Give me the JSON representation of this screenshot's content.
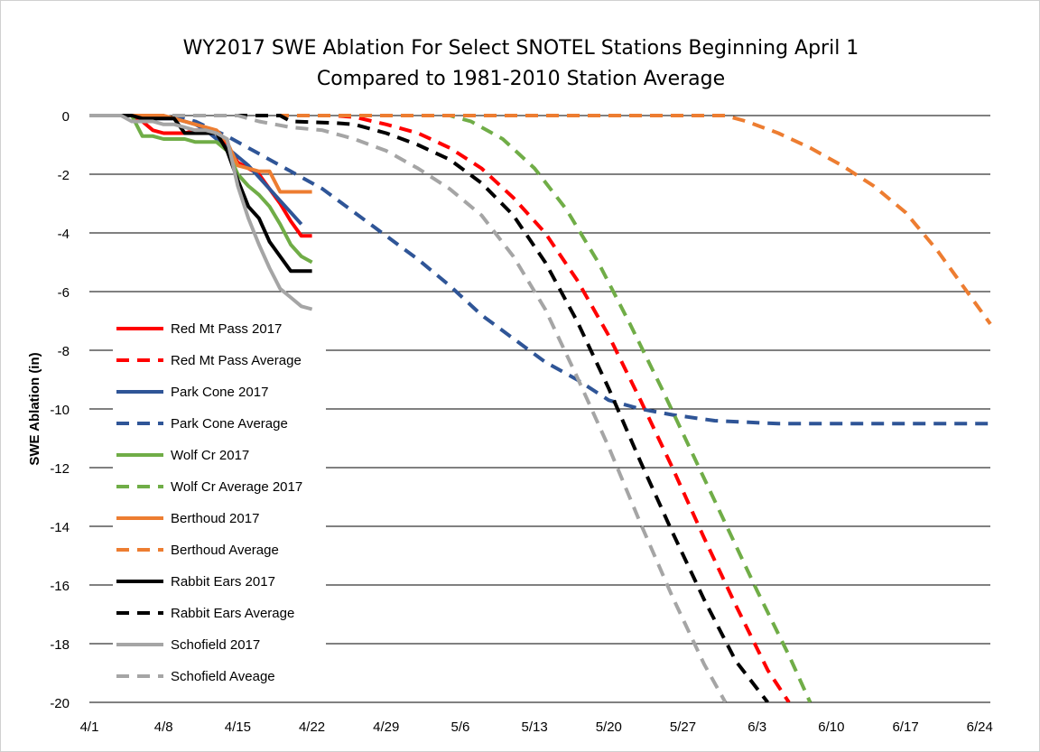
{
  "chart_data": {
    "type": "line",
    "title": "WY2017 SWE Ablation For Select SNOTEL Stations Beginning April 1",
    "subtitle": "Compared to 1981-2010 Station Average",
    "xlabel": "",
    "ylabel": "SWE Ablation (in)",
    "xlim": [
      "4/1",
      "6/25"
    ],
    "ylim": [
      -20,
      0
    ],
    "x_ticks": [
      "4/1",
      "4/8",
      "4/15",
      "4/22",
      "4/29",
      "5/6",
      "5/13",
      "5/20",
      "5/27",
      "6/3",
      "6/10",
      "6/17",
      "6/24"
    ],
    "y_ticks": [
      0,
      -2,
      -4,
      -6,
      -8,
      -10,
      -12,
      -14,
      -16,
      -18,
      -20
    ],
    "grid": "horizontal",
    "legend_position": "left-bottom inside",
    "series": [
      {
        "name": "Red Mt Pass 2017",
        "color": "#ff0000",
        "dash": false,
        "points": [
          [
            "4/1",
            0
          ],
          [
            "4/5",
            0
          ],
          [
            "4/6",
            -0.2
          ],
          [
            "4/7",
            -0.5
          ],
          [
            "4/8",
            -0.6
          ],
          [
            "4/9",
            -0.6
          ],
          [
            "4/10",
            -0.6
          ],
          [
            "4/11",
            -0.5
          ],
          [
            "4/12",
            -0.5
          ],
          [
            "4/13",
            -0.6
          ],
          [
            "4/14",
            -1.0
          ],
          [
            "4/15",
            -1.6
          ],
          [
            "4/16",
            -1.8
          ],
          [
            "4/17",
            -2.0
          ],
          [
            "4/18",
            -2.5
          ],
          [
            "4/19",
            -3.0
          ],
          [
            "4/20",
            -3.6
          ],
          [
            "4/21",
            -4.1
          ],
          [
            "4/22",
            -4.1
          ]
        ]
      },
      {
        "name": "Red Mt Pass Average",
        "color": "#ff0000",
        "dash": true,
        "points": [
          [
            "4/1",
            0
          ],
          [
            "4/24",
            0
          ],
          [
            "4/26",
            -0.05
          ],
          [
            "4/29",
            -0.3
          ],
          [
            "5/2",
            -0.6
          ],
          [
            "5/5",
            -1.1
          ],
          [
            "5/8",
            -1.8
          ],
          [
            "5/11",
            -2.8
          ],
          [
            "5/14",
            -4.0
          ],
          [
            "5/17",
            -5.6
          ],
          [
            "5/20",
            -7.5
          ],
          [
            "5/23",
            -9.7
          ],
          [
            "5/26",
            -12.0
          ],
          [
            "5/29",
            -14.4
          ],
          [
            "6/1",
            -16.7
          ],
          [
            "6/4",
            -18.9
          ],
          [
            "6/6",
            -20
          ]
        ]
      },
      {
        "name": "Park Cone 2017",
        "color": "#2f5597",
        "dash": false,
        "points": [
          [
            "4/1",
            0
          ],
          [
            "4/6",
            0
          ],
          [
            "4/7",
            -0.1
          ],
          [
            "4/8",
            -0.1
          ],
          [
            "4/9",
            -0.1
          ],
          [
            "4/10",
            -0.2
          ],
          [
            "4/11",
            -0.3
          ],
          [
            "4/12",
            -0.5
          ],
          [
            "4/13",
            -0.8
          ],
          [
            "4/14",
            -1.1
          ],
          [
            "4/15",
            -1.4
          ],
          [
            "4/16",
            -1.7
          ],
          [
            "4/17",
            -2.1
          ],
          [
            "4/18",
            -2.5
          ],
          [
            "4/19",
            -2.9
          ],
          [
            "4/20",
            -3.3
          ],
          [
            "4/21",
            -3.7
          ]
        ]
      },
      {
        "name": "Park Cone Average",
        "color": "#2f5597",
        "dash": true,
        "points": [
          [
            "4/1",
            0
          ],
          [
            "4/9",
            0
          ],
          [
            "4/11",
            -0.2
          ],
          [
            "4/14",
            -0.7
          ],
          [
            "4/17",
            -1.3
          ],
          [
            "4/20",
            -1.9
          ],
          [
            "4/23",
            -2.5
          ],
          [
            "4/26",
            -3.3
          ],
          [
            "4/29",
            -4.1
          ],
          [
            "5/2",
            -4.9
          ],
          [
            "5/5",
            -5.8
          ],
          [
            "5/8",
            -6.8
          ],
          [
            "5/11",
            -7.6
          ],
          [
            "5/14",
            -8.4
          ],
          [
            "5/17",
            -9.0
          ],
          [
            "5/20",
            -9.7
          ],
          [
            "5/23",
            -10.0
          ],
          [
            "5/26",
            -10.2
          ],
          [
            "5/30",
            -10.4
          ],
          [
            "6/5",
            -10.5
          ],
          [
            "6/25",
            -10.5
          ]
        ]
      },
      {
        "name": "Wolf Cr 2017",
        "color": "#70ad47",
        "dash": false,
        "points": [
          [
            "4/1",
            0
          ],
          [
            "4/5",
            0
          ],
          [
            "4/6",
            -0.7
          ],
          [
            "4/7",
            -0.7
          ],
          [
            "4/8",
            -0.8
          ],
          [
            "4/9",
            -0.8
          ],
          [
            "4/10",
            -0.8
          ],
          [
            "4/11",
            -0.9
          ],
          [
            "4/12",
            -0.9
          ],
          [
            "4/13",
            -0.9
          ],
          [
            "4/14",
            -1.2
          ],
          [
            "4/15",
            -2.0
          ],
          [
            "4/16",
            -2.4
          ],
          [
            "4/17",
            -2.7
          ],
          [
            "4/18",
            -3.1
          ],
          [
            "4/19",
            -3.7
          ],
          [
            "4/20",
            -4.4
          ],
          [
            "4/21",
            -4.8
          ],
          [
            "4/22",
            -5.0
          ]
        ]
      },
      {
        "name": "Wolf Cr Average 2017",
        "color": "#70ad47",
        "dash": true,
        "points": [
          [
            "4/1",
            0
          ],
          [
            "5/5",
            0
          ],
          [
            "5/7",
            -0.2
          ],
          [
            "5/10",
            -0.8
          ],
          [
            "5/13",
            -1.8
          ],
          [
            "5/16",
            -3.2
          ],
          [
            "5/19",
            -5.0
          ],
          [
            "5/22",
            -7.1
          ],
          [
            "5/25",
            -9.3
          ],
          [
            "5/28",
            -11.6
          ],
          [
            "5/31",
            -13.9
          ],
          [
            "6/3",
            -16.2
          ],
          [
            "6/6",
            -18.4
          ],
          [
            "6/8",
            -20
          ]
        ]
      },
      {
        "name": "Berthoud 2017",
        "color": "#ed7d31",
        "dash": false,
        "points": [
          [
            "4/1",
            0
          ],
          [
            "4/8",
            0
          ],
          [
            "4/9",
            -0.1
          ],
          [
            "4/10",
            -0.2
          ],
          [
            "4/11",
            -0.3
          ],
          [
            "4/12",
            -0.4
          ],
          [
            "4/13",
            -0.5
          ],
          [
            "4/14",
            -0.9
          ],
          [
            "4/15",
            -1.7
          ],
          [
            "4/16",
            -1.8
          ],
          [
            "4/17",
            -1.9
          ],
          [
            "4/18",
            -1.9
          ],
          [
            "4/19",
            -2.6
          ],
          [
            "4/20",
            -2.6
          ],
          [
            "4/21",
            -2.6
          ],
          [
            "4/22",
            -2.6
          ]
        ]
      },
      {
        "name": "Berthoud Average",
        "color": "#ed7d31",
        "dash": true,
        "points": [
          [
            "4/1",
            0
          ],
          [
            "5/31",
            0
          ],
          [
            "6/2",
            -0.2
          ],
          [
            "6/5",
            -0.6
          ],
          [
            "6/8",
            -1.1
          ],
          [
            "6/11",
            -1.7
          ],
          [
            "6/14",
            -2.4
          ],
          [
            "6/17",
            -3.3
          ],
          [
            "6/20",
            -4.6
          ],
          [
            "6/23",
            -6.1
          ],
          [
            "6/25",
            -7.1
          ]
        ]
      },
      {
        "name": "Rabbit Ears 2017",
        "color": "#000000",
        "dash": false,
        "points": [
          [
            "4/1",
            0
          ],
          [
            "4/5",
            0
          ],
          [
            "4/6",
            -0.1
          ],
          [
            "4/7",
            -0.1
          ],
          [
            "4/8",
            -0.1
          ],
          [
            "4/9",
            -0.1
          ],
          [
            "4/10",
            -0.6
          ],
          [
            "4/11",
            -0.6
          ],
          [
            "4/12",
            -0.6
          ],
          [
            "4/13",
            -0.6
          ],
          [
            "4/14",
            -1.2
          ],
          [
            "4/15",
            -2.2
          ],
          [
            "4/16",
            -3.1
          ],
          [
            "4/17",
            -3.5
          ],
          [
            "4/18",
            -4.3
          ],
          [
            "4/19",
            -4.8
          ],
          [
            "4/20",
            -5.3
          ],
          [
            "4/21",
            -5.3
          ],
          [
            "4/22",
            -5.3
          ]
        ]
      },
      {
        "name": "Rabbit Ears Average",
        "color": "#000000",
        "dash": true,
        "points": [
          [
            "4/1",
            0
          ],
          [
            "4/19",
            0
          ],
          [
            "4/20",
            -0.2
          ],
          [
            "4/24",
            -0.25
          ],
          [
            "4/26",
            -0.3
          ],
          [
            "4/29",
            -0.6
          ],
          [
            "5/2",
            -1.0
          ],
          [
            "5/5",
            -1.5
          ],
          [
            "5/8",
            -2.3
          ],
          [
            "5/11",
            -3.4
          ],
          [
            "5/14",
            -5.0
          ],
          [
            "5/17",
            -7.0
          ],
          [
            "5/20",
            -9.3
          ],
          [
            "5/23",
            -11.8
          ],
          [
            "5/26",
            -14.2
          ],
          [
            "5/29",
            -16.5
          ],
          [
            "6/1",
            -18.6
          ],
          [
            "6/4",
            -20
          ]
        ]
      },
      {
        "name": "Schofield 2017",
        "color": "#a5a5a5",
        "dash": false,
        "points": [
          [
            "4/1",
            0
          ],
          [
            "4/4",
            0
          ],
          [
            "4/5",
            -0.2
          ],
          [
            "4/6",
            -0.2
          ],
          [
            "4/7",
            -0.2
          ],
          [
            "4/8",
            -0.3
          ],
          [
            "4/9",
            -0.3
          ],
          [
            "4/10",
            -0.4
          ],
          [
            "4/11",
            -0.5
          ],
          [
            "4/12",
            -0.5
          ],
          [
            "4/13",
            -0.6
          ],
          [
            "4/14",
            -0.8
          ],
          [
            "4/15",
            -2.4
          ],
          [
            "4/16",
            -3.5
          ],
          [
            "4/17",
            -4.4
          ],
          [
            "4/18",
            -5.2
          ],
          [
            "4/19",
            -5.9
          ],
          [
            "4/20",
            -6.2
          ],
          [
            "4/21",
            -6.5
          ],
          [
            "4/22",
            -6.6
          ]
        ]
      },
      {
        "name": "Schofield Aveage",
        "color": "#a5a5a5",
        "dash": true,
        "points": [
          [
            "4/1",
            0
          ],
          [
            "4/15",
            0
          ],
          [
            "4/17",
            -0.2
          ],
          [
            "4/20",
            -0.4
          ],
          [
            "4/23",
            -0.5
          ],
          [
            "4/26",
            -0.8
          ],
          [
            "4/29",
            -1.2
          ],
          [
            "5/2",
            -1.8
          ],
          [
            "5/5",
            -2.5
          ],
          [
            "5/8",
            -3.4
          ],
          [
            "5/11",
            -4.8
          ],
          [
            "5/14",
            -6.6
          ],
          [
            "5/17",
            -8.9
          ],
          [
            "5/20",
            -11.3
          ],
          [
            "5/23",
            -13.9
          ],
          [
            "5/26",
            -16.4
          ],
          [
            "5/29",
            -18.7
          ],
          [
            "5/31",
            -20
          ]
        ]
      }
    ]
  }
}
